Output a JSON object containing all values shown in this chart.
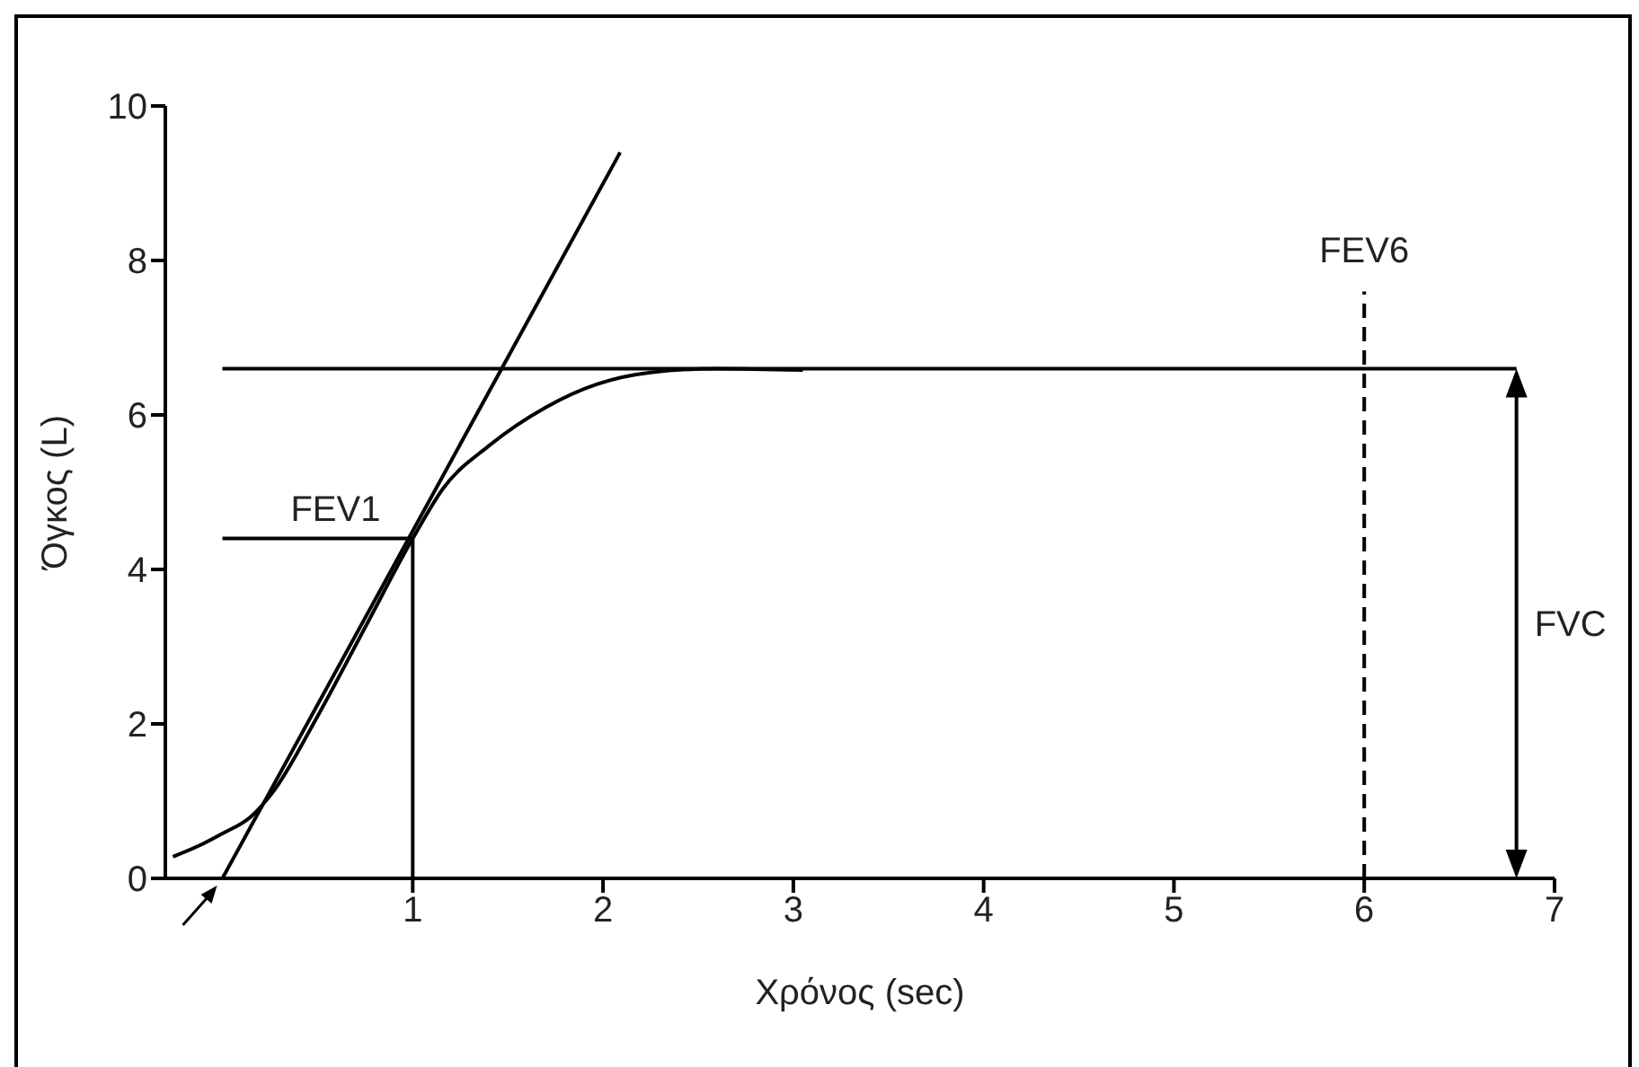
{
  "chart_data": {
    "type": "line",
    "xlabel": "Χρόνος (sec)",
    "ylabel": "Όγκος (L)",
    "xlim": [
      -0.3,
      7
    ],
    "ylim": [
      0,
      10
    ],
    "xticks": [
      1,
      2,
      3,
      4,
      5,
      6,
      7
    ],
    "yticks": [
      0,
      2,
      4,
      6,
      8,
      10
    ],
    "marker": "none",
    "line_style": "solid",
    "series": [
      {
        "color": "#000000",
        "x": [
          -0.26,
          -0.1,
          0,
          0.15,
          0.26,
          0.5,
          0.75,
          1,
          1.16,
          1.4,
          1.7,
          1.97,
          2.25,
          2.6,
          3.05
        ],
        "values": [
          0.28,
          0.45,
          0.58,
          0.8,
          1.1,
          2.1,
          3.25,
          4.4,
          5.05,
          5.6,
          6.1,
          6.4,
          6.55,
          6.6,
          6.58
        ]
      },
      {
        "color": "#000000",
        "x": [
          0,
          2.09
        ],
        "values": [
          0,
          9.4
        ]
      },
      {
        "color": "#000000",
        "x": [
          0,
          1
        ],
        "values": [
          4.4,
          4.4
        ]
      },
      {
        "color": "#000000",
        "x": [
          1,
          1
        ],
        "values": [
          0,
          4.4
        ]
      },
      {
        "color": "#000000",
        "x": [
          0,
          6.8
        ],
        "values": [
          6.6,
          6.6
        ]
      },
      {
        "color": "#000000",
        "x": [
          6,
          6
        ],
        "values": [
          0,
          7.6
        ],
        "line_style": "dashed"
      }
    ],
    "annotations": [
      "FEV1",
      "FEV6",
      "FVC"
    ]
  }
}
